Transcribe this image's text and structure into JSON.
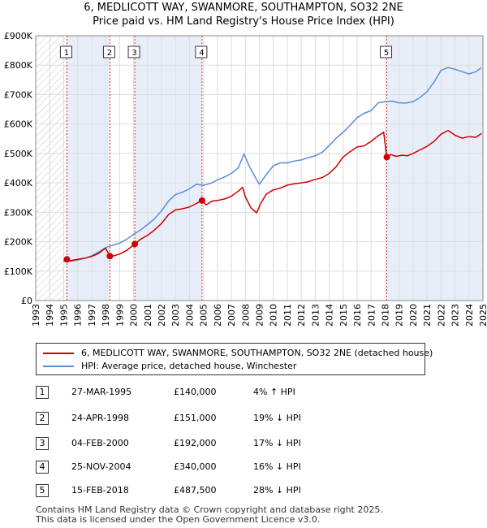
{
  "title_line1": "6, MEDLICOTT WAY, SWANMORE, SOUTHAMPTON, SO32 2NE",
  "title_line2": "Price paid vs. HM Land Registry's House Price Index (HPI)",
  "colors": {
    "property": "#cc0000",
    "hpi": "#5b8dd6",
    "shade": "#e8eef9",
    "grid": "#dddddd"
  },
  "chart_data": {
    "type": "line",
    "title": "6, MEDLICOTT WAY, SWANMORE, SOUTHAMPTON, SO32 2NE — Price paid vs. HM Land Registry's House Price Index (HPI)",
    "xlabel": "",
    "ylabel": "",
    "xlim": [
      1993,
      2025
    ],
    "ylim": [
      0,
      900000
    ],
    "y_ticks": [
      0,
      100000,
      200000,
      300000,
      400000,
      500000,
      600000,
      700000,
      800000,
      900000
    ],
    "y_tick_labels": [
      "£0",
      "£100K",
      "£200K",
      "£300K",
      "£400K",
      "£500K",
      "£600K",
      "£700K",
      "£800K",
      "£900K"
    ],
    "x_ticks": [
      1993,
      1994,
      1995,
      1996,
      1997,
      1998,
      1999,
      2000,
      2001,
      2002,
      2003,
      2004,
      2005,
      2006,
      2007,
      2008,
      2009,
      2010,
      2011,
      2012,
      2013,
      2014,
      2015,
      2016,
      2017,
      2018,
      2019,
      2020,
      2021,
      2022,
      2023,
      2024,
      2025
    ],
    "x_tick_labels": [
      "1993",
      "1994",
      "1995",
      "1996",
      "1997",
      "1998",
      "1999",
      "2000",
      "2001",
      "2002",
      "2003",
      "2004",
      "2005",
      "2006",
      "2007",
      "2008",
      "2009",
      "2010",
      "2011",
      "2012",
      "2013",
      "2014",
      "2015",
      "2016",
      "2017",
      "2018",
      "2019",
      "2020",
      "2021",
      "2022",
      "2023",
      "2024",
      "2025"
    ],
    "grid": true,
    "hatched_until": 1995.23,
    "series": [
      {
        "name": "6, MEDLICOTT WAY, SWANMORE, SOUTHAMPTON, SO32 2NE (detached house)",
        "color": "#cc0000",
        "x": [
          1995.23,
          1995.5,
          1996.0,
          1996.5,
          1997.0,
          1997.5,
          1998.0,
          1998.31,
          1998.6,
          1999.0,
          1999.5,
          2000.09,
          2000.5,
          2001.0,
          2001.5,
          2002.0,
          2002.5,
          2003.0,
          2003.5,
          2004.0,
          2004.5,
          2004.9,
          2005.2,
          2005.6,
          2006.0,
          2006.5,
          2007.0,
          2007.5,
          2007.8,
          2008.0,
          2008.4,
          2008.8,
          2009.1,
          2009.5,
          2010.0,
          2010.5,
          2011.0,
          2011.5,
          2012.0,
          2012.5,
          2013.0,
          2013.5,
          2014.0,
          2014.5,
          2015.0,
          2015.5,
          2016.0,
          2016.5,
          2017.0,
          2017.5,
          2017.9,
          2018.12,
          2018.4,
          2018.8,
          2019.2,
          2019.6,
          2020.0,
          2020.5,
          2021.0,
          2021.5,
          2022.0,
          2022.5,
          2023.0,
          2023.5,
          2024.0,
          2024.5,
          2024.9
        ],
        "values": [
          140000,
          136000,
          140000,
          144000,
          150000,
          160000,
          178000,
          151000,
          152000,
          158000,
          170000,
          192000,
          208000,
          222000,
          240000,
          262000,
          292000,
          308000,
          312000,
          318000,
          330000,
          340000,
          325000,
          338000,
          340000,
          345000,
          355000,
          372000,
          385000,
          352000,
          315000,
          298000,
          330000,
          362000,
          376000,
          382000,
          392000,
          397000,
          400000,
          404000,
          412000,
          418000,
          432000,
          455000,
          488000,
          506000,
          522000,
          526000,
          541000,
          560000,
          572000,
          487500,
          496000,
          490000,
          494000,
          492000,
          500000,
          512000,
          524000,
          541000,
          565000,
          578000,
          562000,
          552000,
          557000,
          555000,
          568000
        ]
      },
      {
        "name": "HPI: Average price, detached house, Winchester",
        "color": "#5b8dd6",
        "x": [
          1995.0,
          1995.5,
          1996.0,
          1996.5,
          1997.0,
          1997.5,
          1998.0,
          1998.5,
          1999.0,
          1999.5,
          2000.0,
          2000.5,
          2001.0,
          2001.5,
          2002.0,
          2002.5,
          2003.0,
          2003.5,
          2004.0,
          2004.5,
          2005.0,
          2005.5,
          2006.0,
          2006.5,
          2007.0,
          2007.5,
          2007.9,
          2008.3,
          2008.7,
          2009.0,
          2009.5,
          2010.0,
          2010.5,
          2011.0,
          2011.5,
          2012.0,
          2012.5,
          2013.0,
          2013.5,
          2014.0,
          2014.5,
          2015.0,
          2015.5,
          2016.0,
          2016.5,
          2017.0,
          2017.5,
          2018.0,
          2018.5,
          2019.0,
          2019.5,
          2020.0,
          2020.5,
          2021.0,
          2021.5,
          2022.0,
          2022.5,
          2023.0,
          2023.5,
          2024.0,
          2024.5,
          2024.9
        ],
        "values": [
          133000,
          133000,
          138000,
          143000,
          152000,
          165000,
          180000,
          188000,
          195000,
          208000,
          225000,
          240000,
          258000,
          278000,
          305000,
          338000,
          360000,
          368000,
          380000,
          395000,
          392000,
          398000,
          410000,
          420000,
          432000,
          452000,
          498000,
          455000,
          420000,
          395000,
          428000,
          458000,
          468000,
          468000,
          474000,
          478000,
          486000,
          492000,
          504000,
          527000,
          552000,
          572000,
          596000,
          622000,
          636000,
          646000,
          672000,
          676000,
          678000,
          672000,
          671000,
          676000,
          690000,
          710000,
          742000,
          782000,
          792000,
          786000,
          778000,
          770000,
          778000,
          792000
        ]
      }
    ],
    "transactions": [
      {
        "label": "1",
        "x": 1995.23,
        "value": 140000
      },
      {
        "label": "2",
        "x": 1998.31,
        "value": 151000
      },
      {
        "label": "3",
        "x": 2000.09,
        "value": 192000
      },
      {
        "label": "4",
        "x": 2004.9,
        "value": 340000
      },
      {
        "label": "5",
        "x": 2018.12,
        "value": 487500
      }
    ]
  },
  "legend": {
    "property_label": "6, MEDLICOTT WAY, SWANMORE, SOUTHAMPTON, SO32 2NE (detached house)",
    "hpi_label": "HPI: Average price, detached house, Winchester"
  },
  "transactions_table": [
    {
      "num": "1",
      "date": "27-MAR-1995",
      "price": "£140,000",
      "hpi": "4% ↑ HPI"
    },
    {
      "num": "2",
      "date": "24-APR-1998",
      "price": "£151,000",
      "hpi": "19% ↓ HPI"
    },
    {
      "num": "3",
      "date": "04-FEB-2000",
      "price": "£192,000",
      "hpi": "17% ↓ HPI"
    },
    {
      "num": "4",
      "date": "25-NOV-2004",
      "price": "£340,000",
      "hpi": "16% ↓ HPI"
    },
    {
      "num": "5",
      "date": "15-FEB-2018",
      "price": "£487,500",
      "hpi": "28% ↓ HPI"
    }
  ],
  "footer_line1": "Contains HM Land Registry data © Crown copyright and database right 2025.",
  "footer_line2": "This data is licensed under the Open Government Licence v3.0."
}
